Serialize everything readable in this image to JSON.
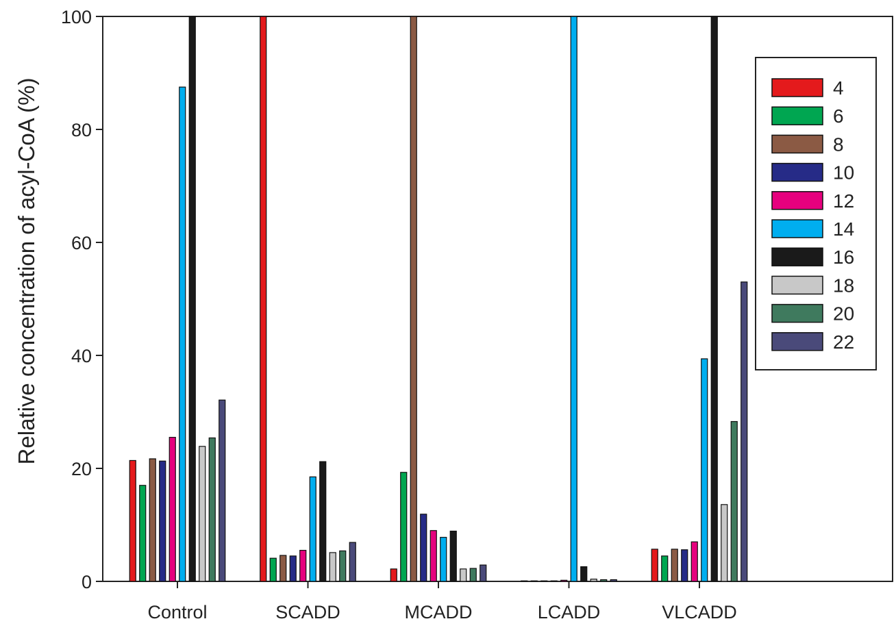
{
  "chart_data": {
    "type": "bar",
    "title": "",
    "xlabel": "",
    "ylabel": "Relative concentration of acyl-CoA (%)",
    "ylim": [
      0,
      100
    ],
    "yticks": [
      "0",
      "20",
      "40",
      "60",
      "80",
      "100"
    ],
    "grid": false,
    "legend_position": "top-right",
    "categories": [
      "Control",
      "SCADD",
      "MCADD",
      "LCADD",
      "VLCADD"
    ],
    "series": [
      {
        "name": "4",
        "color": "#e41a1c",
        "values": [
          21.4,
          100,
          2.2,
          0,
          5.7
        ]
      },
      {
        "name": "6",
        "color": "#00a651",
        "values": [
          17.0,
          4.1,
          19.3,
          0,
          4.5
        ]
      },
      {
        "name": "8",
        "color": "#8b5a44",
        "values": [
          21.7,
          4.6,
          100,
          0,
          5.7
        ]
      },
      {
        "name": "10",
        "color": "#262b87",
        "values": [
          21.3,
          4.5,
          11.9,
          0,
          5.6
        ]
      },
      {
        "name": "12",
        "color": "#e6007e",
        "values": [
          25.5,
          5.5,
          9.0,
          0.2,
          7.0
        ]
      },
      {
        "name": "14",
        "color": "#00aeef",
        "values": [
          87.5,
          18.5,
          7.8,
          100,
          39.4
        ]
      },
      {
        "name": "16",
        "color": "#1a1a1a",
        "values": [
          100,
          21.2,
          8.9,
          2.6,
          100
        ]
      },
      {
        "name": "18",
        "color": "#c8c8c8",
        "values": [
          23.9,
          5.1,
          2.2,
          0.4,
          13.6
        ]
      },
      {
        "name": "20",
        "color": "#3f7a5e",
        "values": [
          25.4,
          5.4,
          2.3,
          0.3,
          28.3
        ]
      },
      {
        "name": "22",
        "color": "#4a4a7a",
        "values": [
          32.1,
          6.9,
          2.9,
          0.3,
          53.0
        ]
      }
    ]
  }
}
